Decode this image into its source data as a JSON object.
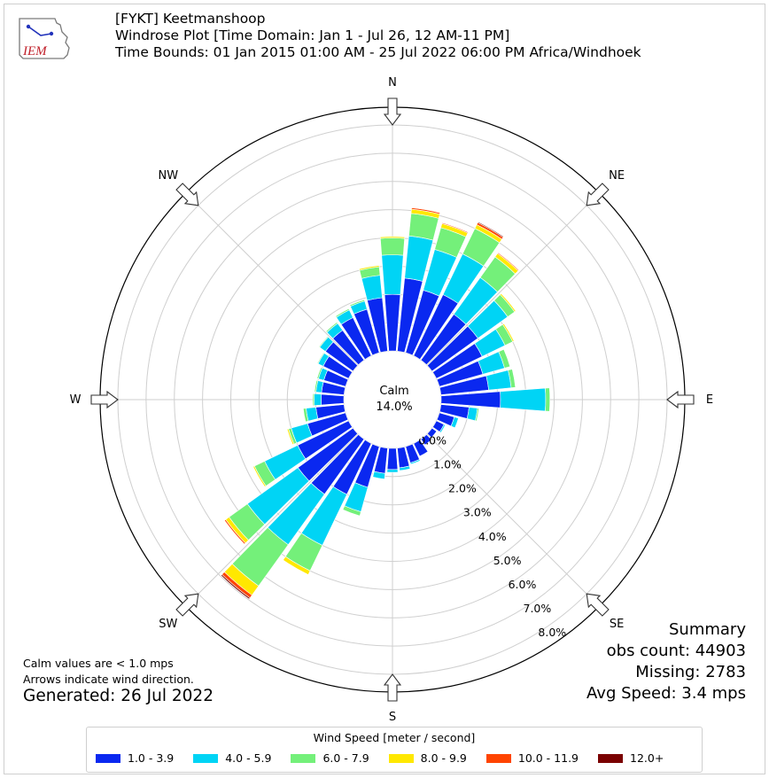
{
  "header": {
    "logo_text": "IEM",
    "title_line1": "[FYKT] Keetmanshoop",
    "title_line2": "Windrose Plot [Time Domain: Jan 1 - Jul 26, 12 AM-11 PM]",
    "title_line3": "Time Bounds: 01 Jan 2015 01:00 AM - 25 Jul 2022 06:00 PM Africa/Windhoek"
  },
  "chart_data": {
    "type": "windrose",
    "calm_label": "Calm",
    "calm_value": "14.0%",
    "directions": [
      "N",
      "NE",
      "E",
      "SE",
      "S",
      "SW",
      "W",
      "NW"
    ],
    "radial_ticks": [
      "0.0%",
      "1.0%",
      "2.0%",
      "3.0%",
      "4.0%",
      "5.0%",
      "6.0%",
      "7.0%",
      "8.0%"
    ],
    "radial_max": 8.0,
    "bins": [
      "1.0 - 3.9",
      "4.0 - 5.9",
      "6.0 - 7.9",
      "8.0 - 9.9",
      "10.0 - 11.9",
      "12.0+"
    ],
    "colors": [
      "#0a28f0",
      "#00d4f5",
      "#74f07a",
      "#ffe800",
      "#ff4400",
      "#7a0000"
    ],
    "bars": [
      {
        "dir": 0,
        "values": [
          2.0,
          1.4,
          0.6,
          0.05,
          0.0,
          0.0
        ]
      },
      {
        "dir": 10,
        "values": [
          2.6,
          1.5,
          0.8,
          0.15,
          0.05,
          0.0
        ]
      },
      {
        "dir": 20,
        "values": [
          2.3,
          1.5,
          0.8,
          0.15,
          0.03,
          0.0
        ]
      },
      {
        "dir": 30,
        "values": [
          2.4,
          1.6,
          1.0,
          0.15,
          0.08,
          0.03
        ]
      },
      {
        "dir": 40,
        "values": [
          2.0,
          1.6,
          0.9,
          0.15,
          0.03,
          0.0
        ]
      },
      {
        "dir": 50,
        "values": [
          2.0,
          1.3,
          0.3,
          0.05,
          0.0,
          0.0
        ]
      },
      {
        "dir": 60,
        "values": [
          1.8,
          0.9,
          0.3,
          0.05,
          0.0,
          0.0
        ]
      },
      {
        "dir": 70,
        "values": [
          1.6,
          0.8,
          0.2,
          0.0,
          0.0,
          0.0
        ]
      },
      {
        "dir": 80,
        "values": [
          1.7,
          0.8,
          0.15,
          0.0,
          0.0,
          0.0
        ]
      },
      {
        "dir": 90,
        "values": [
          2.1,
          1.6,
          0.15,
          0.0,
          0.0,
          0.0
        ]
      },
      {
        "dir": 100,
        "values": [
          1.0,
          0.3,
          0.05,
          0.0,
          0.0,
          0.0
        ]
      },
      {
        "dir": 110,
        "values": [
          0.55,
          0.15,
          0.0,
          0.0,
          0.0,
          0.0
        ]
      },
      {
        "dir": 120,
        "values": [
          0.3,
          0.05,
          0.0,
          0.0,
          0.0,
          0.0
        ]
      },
      {
        "dir": 130,
        "values": [
          0.2,
          0.0,
          0.0,
          0.0,
          0.0,
          0.0
        ]
      },
      {
        "dir": 140,
        "values": [
          0.25,
          0.0,
          0.0,
          0.0,
          0.0,
          0.0
        ]
      },
      {
        "dir": 150,
        "values": [
          0.5,
          0.0,
          0.0,
          0.0,
          0.0,
          0.0
        ]
      },
      {
        "dir": 160,
        "values": [
          0.6,
          0.05,
          0.0,
          0.0,
          0.0,
          0.0
        ]
      },
      {
        "dir": 170,
        "values": [
          0.7,
          0.1,
          0.0,
          0.0,
          0.0,
          0.0
        ]
      },
      {
        "dir": 180,
        "values": [
          0.75,
          0.1,
          0.0,
          0.0,
          0.0,
          0.0
        ]
      },
      {
        "dir": 190,
        "values": [
          0.9,
          0.2,
          0.0,
          0.0,
          0.0,
          0.0
        ]
      },
      {
        "dir": 200,
        "values": [
          1.5,
          0.9,
          0.15,
          0.0,
          0.0,
          0.0
        ]
      },
      {
        "dir": 210,
        "values": [
          2.0,
          2.0,
          1.0,
          0.15,
          0.0,
          0.0
        ]
      },
      {
        "dir": 220,
        "values": [
          2.4,
          2.2,
          1.8,
          0.4,
          0.12,
          0.05
        ]
      },
      {
        "dir": 230,
        "values": [
          2.4,
          2.2,
          0.8,
          0.15,
          0.05,
          0.0
        ]
      },
      {
        "dir": 240,
        "values": [
          2.0,
          1.3,
          0.4,
          0.05,
          0.0,
          0.0
        ]
      },
      {
        "dir": 250,
        "values": [
          1.4,
          0.6,
          0.1,
          0.05,
          0.0,
          0.0
        ]
      },
      {
        "dir": 260,
        "values": [
          1.0,
          0.35,
          0.1,
          0.0,
          0.0,
          0.0
        ]
      },
      {
        "dir": 270,
        "values": [
          0.8,
          0.25,
          0.05,
          0.0,
          0.0,
          0.0
        ]
      },
      {
        "dir": 280,
        "values": [
          0.8,
          0.2,
          0.05,
          0.0,
          0.0,
          0.0
        ]
      },
      {
        "dir": 290,
        "values": [
          0.8,
          0.2,
          0.05,
          0.0,
          0.0,
          0.0
        ]
      },
      {
        "dir": 300,
        "values": [
          1.0,
          0.2,
          0.03,
          0.0,
          0.0,
          0.0
        ]
      },
      {
        "dir": 310,
        "values": [
          1.2,
          0.25,
          0.03,
          0.0,
          0.0,
          0.0
        ]
      },
      {
        "dir": 320,
        "values": [
          1.3,
          0.3,
          0.05,
          0.0,
          0.0,
          0.0
        ]
      },
      {
        "dir": 330,
        "values": [
          1.5,
          0.3,
          0.05,
          0.0,
          0.0,
          0.0
        ]
      },
      {
        "dir": 340,
        "values": [
          1.6,
          0.3,
          0.05,
          0.0,
          0.0,
          0.0
        ]
      },
      {
        "dir": 350,
        "values": [
          1.9,
          0.8,
          0.3,
          0.05,
          0.0,
          0.0
        ]
      }
    ]
  },
  "notes": {
    "calm_note": "Calm values are < 1.0 mps",
    "arrow_note": "Arrows indicate wind direction.",
    "generated": "Generated: 26 Jul 2022"
  },
  "summary": {
    "heading": "Summary",
    "obs_count": "obs count: 44903",
    "missing": "Missing: 2783",
    "avg_speed": "Avg Speed: 3.4 mps"
  },
  "legend": {
    "title": "Wind Speed [meter / second]",
    "items": [
      "1.0 - 3.9",
      "4.0 - 5.9",
      "6.0 - 7.9",
      "8.0 - 9.9",
      "10.0 - 11.9",
      "12.0+"
    ]
  }
}
